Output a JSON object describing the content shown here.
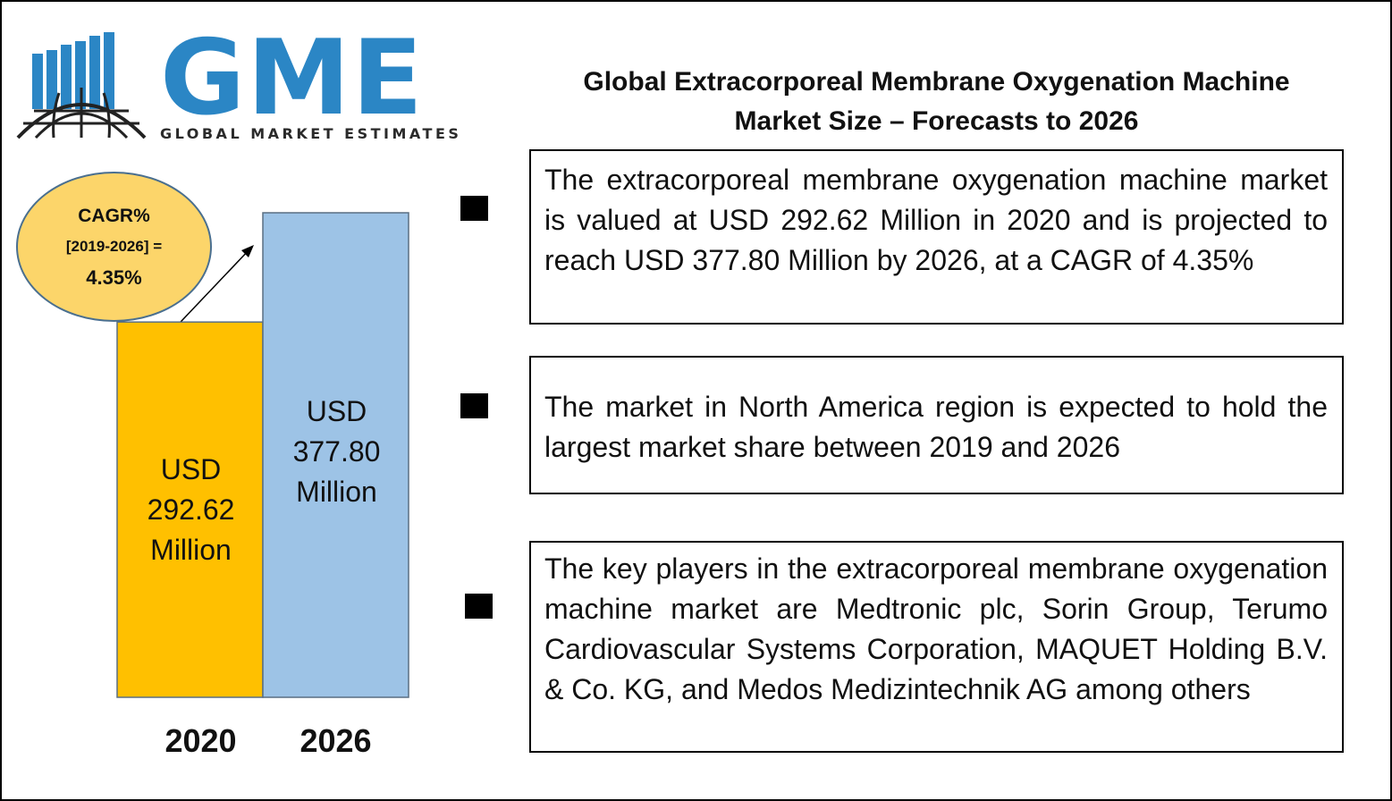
{
  "logo": {
    "letters": "GME",
    "tagline": "GLOBAL MARKET ESTIMATES",
    "brand_color": "#2b86c5"
  },
  "title": {
    "line1": "Global Extracorporeal Membrane Oxygenation Machine",
    "line2": "Market Size – Forecasts to 2026"
  },
  "cagr": {
    "line1": "CAGR%",
    "line2": "[2019-2026] =",
    "line3": "4.35%"
  },
  "chart_data": {
    "type": "bar",
    "categories": [
      "2020",
      "2026"
    ],
    "values": [
      292.62,
      377.8
    ],
    "value_labels": [
      [
        "USD",
        "292.62",
        "Million"
      ],
      [
        "USD",
        "377.80",
        "Million"
      ]
    ],
    "colors": [
      "#ffc000",
      "#9dc3e6"
    ],
    "ylim": [
      0,
      400
    ]
  },
  "points": [
    "The extracorporeal membrane oxygenation machine market is valued at USD 292.62 Million in 2020 and is projected to reach USD 377.80 Million by 2026, at a CAGR of 4.35%",
    "The market in North America region is expected to hold the largest market share between 2019 and 2026",
    "The key players in the extracorporeal membrane oxygenation machine market are Medtronic plc, Sorin Group, Terumo Cardiovascular Systems Corporation, MAQUET Holding B.V. & Co. KG, and Medos Medizintechnik AG among others"
  ]
}
